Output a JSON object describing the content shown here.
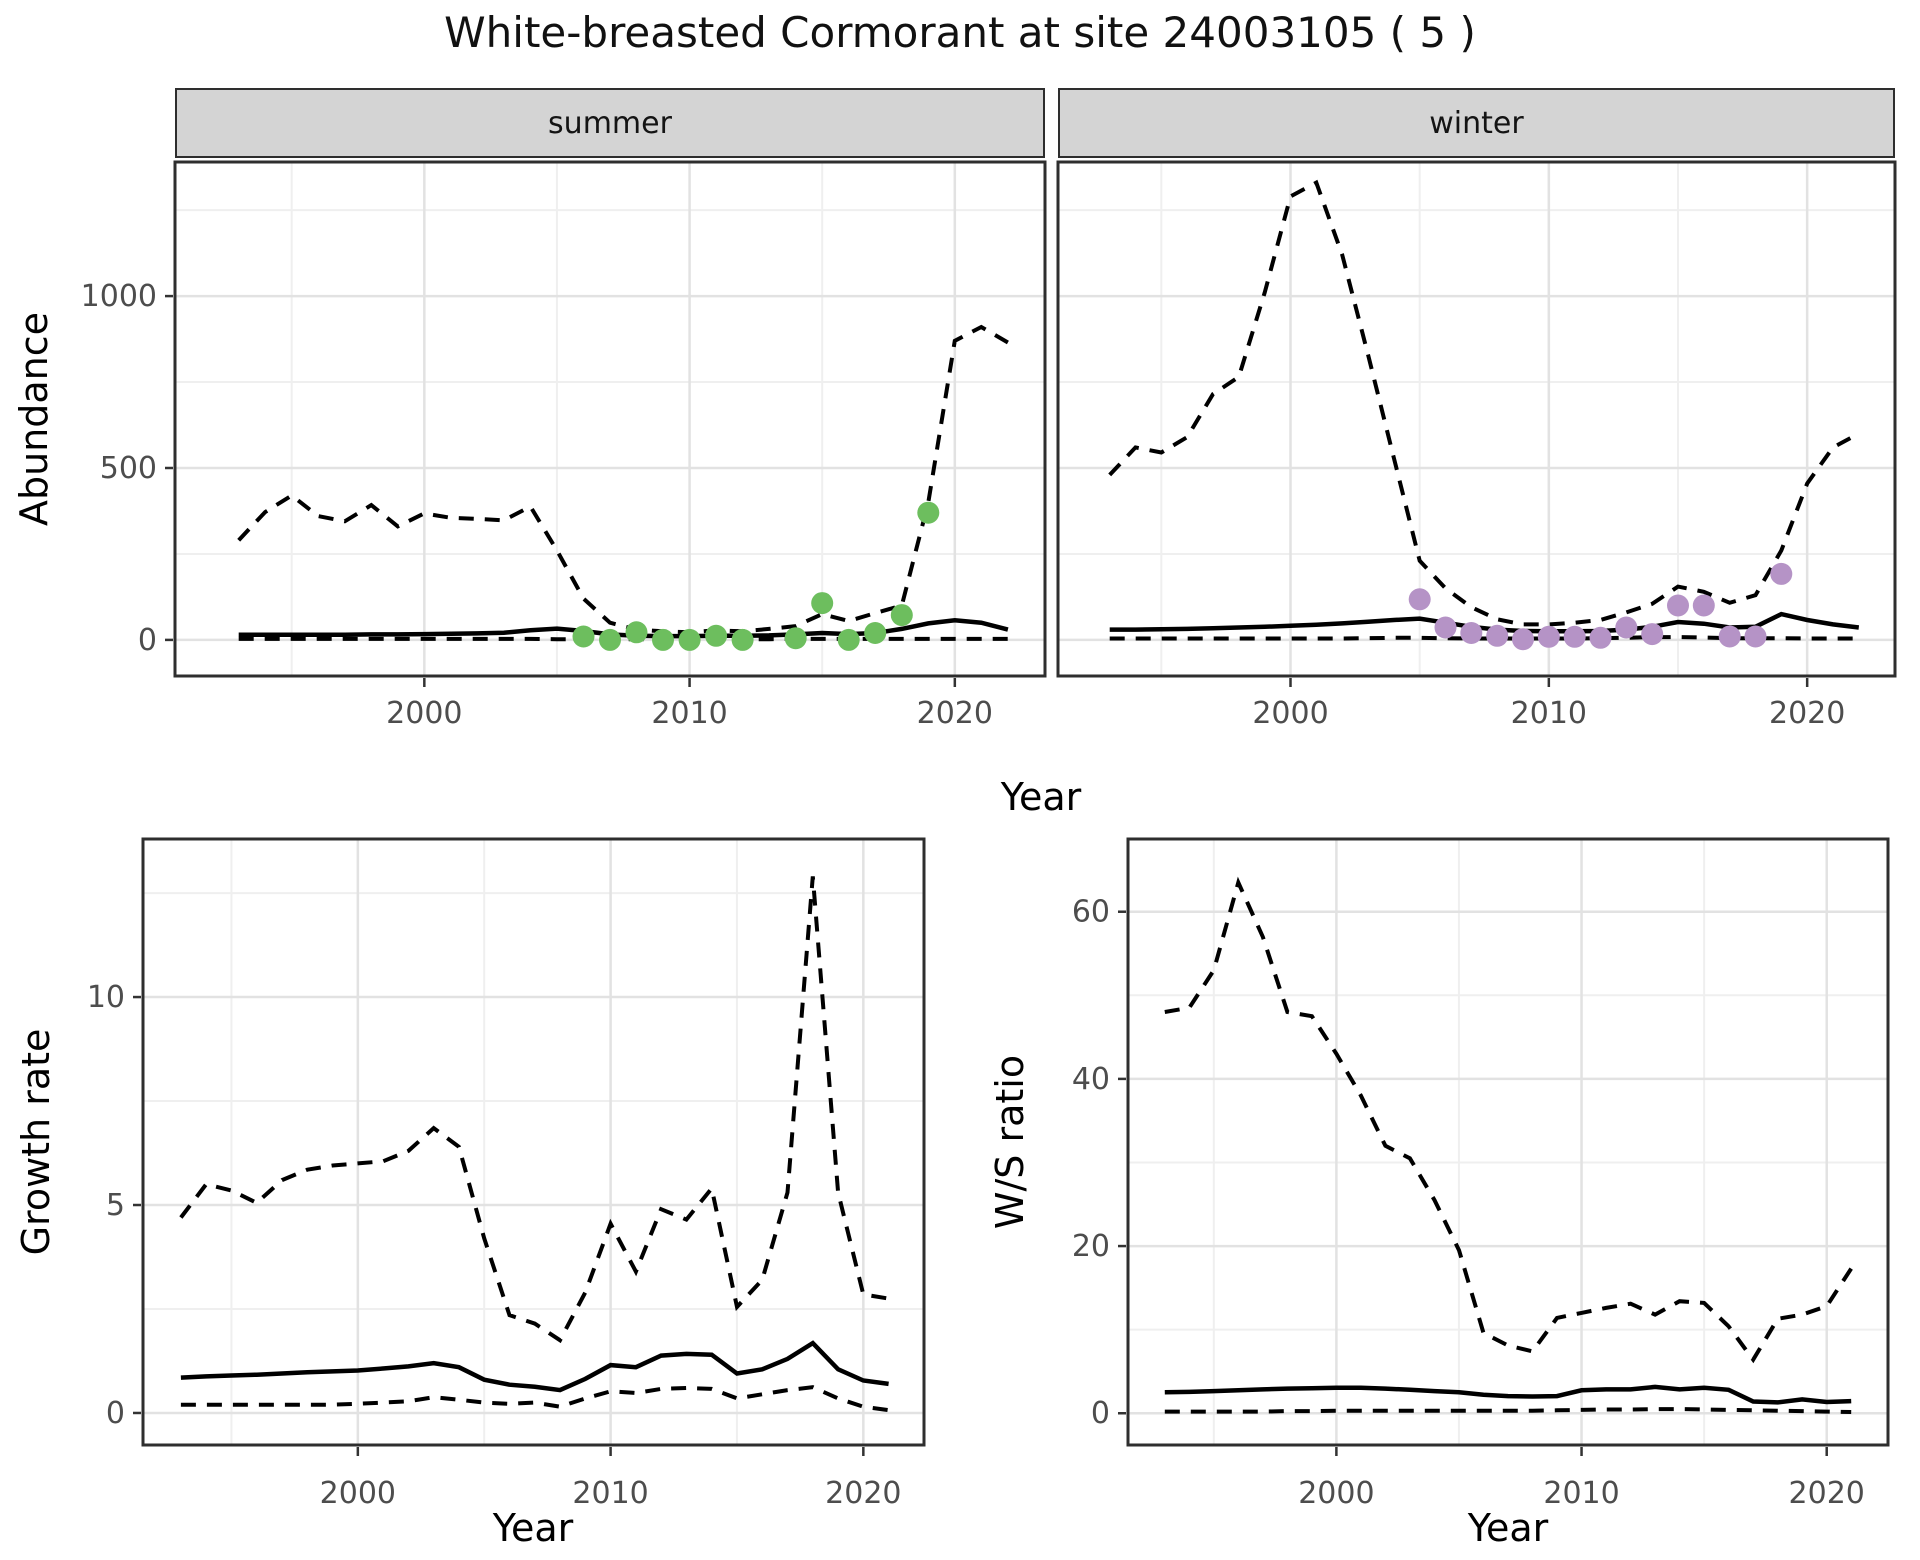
{
  "title": "White-breasted Cormorant at site 24003105 ( 5 )",
  "facets": [
    {
      "label": "summer"
    },
    {
      "label": "winter"
    }
  ],
  "axis_titles": {
    "abundance": "Abundance",
    "year_top": "Year",
    "growth_rate": "Growth rate",
    "ws_ratio": "W/S ratio",
    "year_bottom_left": "Year",
    "year_bottom_right": "Year"
  },
  "colors": {
    "summer_points": "#6dbe5e",
    "winter_points": "#b593c6",
    "line": "#000000",
    "grid_major": "#e2e2e2",
    "grid_minor": "#efefef",
    "panel_border": "#2e2e2e",
    "strip_fill": "#d4d4d4",
    "tick_text": "#4d4d4d"
  },
  "chart_data": [
    {
      "id": "abundance_summer",
      "type": "line",
      "facet": "summer",
      "xlabel": "Year",
      "ylabel": "Abundance",
      "x_ticks": [
        2000,
        2010,
        2020
      ],
      "y_ticks": [
        0,
        500,
        1000
      ],
      "xlim": [
        1990.6,
        2023.4
      ],
      "ylim": [
        -105,
        1390
      ],
      "show_y_labels": true,
      "grid": true,
      "legend": "none",
      "years": [
        1993,
        1994,
        1995,
        1996,
        1997,
        1998,
        1999,
        2000,
        2001,
        2002,
        2003,
        2004,
        2005,
        2006,
        2007,
        2008,
        2009,
        2010,
        2011,
        2012,
        2013,
        2014,
        2015,
        2016,
        2017,
        2018,
        2019,
        2020,
        2021,
        2022
      ],
      "series": [
        {
          "name": "upper_95ci",
          "style": "dashed",
          "values": [
            290,
            372,
            420,
            360,
            345,
            392,
            330,
            368,
            355,
            352,
            348,
            388,
            260,
            120,
            50,
            30,
            25,
            22,
            28,
            25,
            32,
            40,
            75,
            55,
            78,
            100,
            400,
            870,
            910,
            865
          ]
        },
        {
          "name": "estimate",
          "style": "solid",
          "values": [
            15,
            15,
            15,
            15,
            15,
            16,
            16,
            17,
            18,
            19,
            21,
            28,
            33,
            26,
            16,
            12,
            11,
            11,
            12,
            12,
            13,
            16,
            20,
            17,
            20,
            32,
            48,
            57,
            50,
            30
          ]
        },
        {
          "name": "lower_95ci",
          "style": "dashed",
          "values": [
            3,
            3,
            3,
            3,
            3,
            3,
            3,
            3,
            3,
            3,
            3,
            3,
            2,
            2,
            2,
            2,
            2,
            2,
            2,
            2,
            2,
            3,
            3,
            3,
            3,
            3,
            3,
            3,
            3,
            3
          ]
        }
      ],
      "points": {
        "name": "observed_counts_summer",
        "color": "#6dbe5e",
        "years": [
          2006,
          2007,
          2008,
          2009,
          2010,
          2011,
          2012,
          2014,
          2015,
          2016,
          2017,
          2018,
          2019
        ],
        "values": [
          10,
          0,
          22,
          0,
          0,
          12,
          0,
          5,
          107,
          0,
          20,
          72,
          370
        ]
      }
    },
    {
      "id": "abundance_winter",
      "type": "line",
      "facet": "winter",
      "xlabel": "Year",
      "ylabel": "Abundance",
      "x_ticks": [
        2000,
        2010,
        2020
      ],
      "y_ticks": [
        0,
        500,
        1000
      ],
      "xlim": [
        1991.0,
        2023.4
      ],
      "ylim": [
        -105,
        1390
      ],
      "show_y_labels": false,
      "grid": true,
      "legend": "none",
      "years": [
        1993,
        1994,
        1995,
        1996,
        1997,
        1998,
        1999,
        2000,
        2001,
        2002,
        2003,
        2004,
        2005,
        2006,
        2007,
        2008,
        2009,
        2010,
        2011,
        2012,
        2013,
        2014,
        2015,
        2016,
        2017,
        2018,
        2019,
        2020,
        2021,
        2022
      ],
      "series": [
        {
          "name": "upper_95ci",
          "style": "dashed",
          "values": [
            480,
            560,
            545,
            590,
            715,
            765,
            1010,
            1290,
            1330,
            1120,
            830,
            530,
            230,
            150,
            95,
            60,
            45,
            45,
            50,
            58,
            80,
            105,
            155,
            140,
            108,
            130,
            260,
            455,
            560,
            600
          ]
        },
        {
          "name": "estimate",
          "style": "solid",
          "values": [
            30,
            30,
            31,
            32,
            34,
            36,
            38,
            41,
            44,
            48,
            53,
            58,
            62,
            50,
            38,
            30,
            26,
            25,
            25,
            26,
            30,
            38,
            52,
            47,
            36,
            38,
            75,
            58,
            45,
            36
          ]
        },
        {
          "name": "lower_95ci",
          "style": "dashed",
          "values": [
            4,
            4,
            4,
            4,
            4,
            4,
            4,
            4,
            4,
            4,
            5,
            6,
            6,
            5,
            4,
            4,
            4,
            4,
            4,
            5,
            6,
            8,
            8,
            7,
            5,
            5,
            5,
            4,
            4,
            4
          ]
        }
      ],
      "points": {
        "name": "observed_counts_winter",
        "color": "#b593c6",
        "years": [
          2005,
          2006,
          2007,
          2008,
          2009,
          2010,
          2011,
          2012,
          2013,
          2014,
          2015,
          2016,
          2017,
          2018,
          2019
        ],
        "values": [
          118,
          36,
          20,
          12,
          2,
          9,
          9,
          6,
          36,
          17,
          100,
          100,
          10,
          10,
          192
        ]
      }
    },
    {
      "id": "growth_rate",
      "type": "line",
      "facet": "none",
      "xlabel": "Year",
      "ylabel": "Growth rate",
      "x_ticks": [
        2000,
        2010,
        2020
      ],
      "y_ticks": [
        0,
        5,
        10
      ],
      "xlim": [
        1991.5,
        2022.4
      ],
      "ylim": [
        -0.77,
        13.8
      ],
      "show_y_labels": true,
      "grid": true,
      "legend": "none",
      "years": [
        1993,
        1994,
        1995,
        1996,
        1997,
        1998,
        1999,
        2000,
        2001,
        2002,
        2003,
        2004,
        2005,
        2006,
        2007,
        2008,
        2009,
        2010,
        2011,
        2012,
        2013,
        2014,
        2015,
        2016,
        2017,
        2018,
        2019,
        2020,
        2021
      ],
      "series": [
        {
          "name": "upper_95ci",
          "style": "dashed",
          "values": [
            4.7,
            5.5,
            5.35,
            5.05,
            5.6,
            5.85,
            5.95,
            6.0,
            6.05,
            6.3,
            6.85,
            6.4,
            4.2,
            2.35,
            2.15,
            1.75,
            2.9,
            4.55,
            3.4,
            4.9,
            4.65,
            5.4,
            2.55,
            3.2,
            5.3,
            12.9,
            5.3,
            2.85,
            2.75
          ]
        },
        {
          "name": "estimate",
          "style": "solid",
          "values": [
            0.85,
            0.88,
            0.9,
            0.92,
            0.95,
            0.98,
            1.0,
            1.02,
            1.07,
            1.12,
            1.2,
            1.1,
            0.8,
            0.68,
            0.63,
            0.55,
            0.82,
            1.15,
            1.1,
            1.38,
            1.42,
            1.4,
            0.95,
            1.05,
            1.3,
            1.68,
            1.05,
            0.78,
            0.7
          ]
        },
        {
          "name": "lower_95ci",
          "style": "dashed",
          "values": [
            0.2,
            0.2,
            0.2,
            0.2,
            0.2,
            0.2,
            0.2,
            0.22,
            0.25,
            0.28,
            0.38,
            0.32,
            0.25,
            0.22,
            0.25,
            0.15,
            0.35,
            0.52,
            0.48,
            0.58,
            0.6,
            0.58,
            0.35,
            0.45,
            0.55,
            0.62,
            0.35,
            0.15,
            0.07
          ]
        }
      ],
      "points": null
    },
    {
      "id": "ws_ratio",
      "type": "line",
      "facet": "none",
      "xlabel": "Year",
      "ylabel": "W/S ratio",
      "x_ticks": [
        2000,
        2010,
        2020
      ],
      "y_ticks": [
        0,
        20,
        40,
        60
      ],
      "xlim": [
        1991.5,
        2022.5
      ],
      "ylim": [
        -3.8,
        68.7
      ],
      "show_y_labels": true,
      "grid": true,
      "legend": "none",
      "years": [
        1993,
        1994,
        1995,
        1996,
        1997,
        1998,
        1999,
        2000,
        2001,
        2002,
        2003,
        2004,
        2005,
        2006,
        2007,
        2008,
        2009,
        2010,
        2011,
        2012,
        2013,
        2014,
        2015,
        2016,
        2017,
        2018,
        2019,
        2020,
        2021
      ],
      "series": [
        {
          "name": "upper_95ci",
          "style": "dashed",
          "values": [
            48,
            48.5,
            53,
            63.5,
            57,
            48,
            47.5,
            43,
            38,
            32,
            30.5,
            25.5,
            19.5,
            9.6,
            8.1,
            7.4,
            11.4,
            12,
            12.6,
            13.1,
            11.8,
            13.4,
            13.2,
            10.4,
            6.4,
            11.3,
            11.8,
            12.8,
            17.3
          ]
        },
        {
          "name": "estimate",
          "style": "solid",
          "values": [
            2.5,
            2.55,
            2.65,
            2.75,
            2.85,
            2.95,
            3.0,
            3.05,
            3.05,
            2.95,
            2.8,
            2.65,
            2.5,
            2.2,
            2.05,
            2.0,
            2.05,
            2.75,
            2.85,
            2.85,
            3.15,
            2.85,
            3.05,
            2.8,
            1.4,
            1.3,
            1.65,
            1.35,
            1.45
          ]
        },
        {
          "name": "lower_95ci",
          "style": "dashed",
          "values": [
            0.2,
            0.2,
            0.2,
            0.2,
            0.2,
            0.25,
            0.25,
            0.3,
            0.3,
            0.3,
            0.3,
            0.3,
            0.3,
            0.3,
            0.3,
            0.3,
            0.35,
            0.4,
            0.45,
            0.45,
            0.5,
            0.5,
            0.45,
            0.4,
            0.35,
            0.3,
            0.25,
            0.2,
            0.15
          ]
        }
      ],
      "points": null
    }
  ]
}
